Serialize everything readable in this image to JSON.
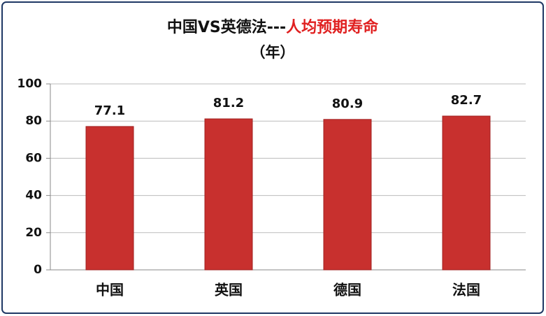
{
  "chart_data": {
    "type": "bar",
    "title": "中国VS英德法---",
    "title_highlight": "人均预期寿命",
    "subtitle": "（年）",
    "categories": [
      "中国",
      "英国",
      "德国",
      "法国"
    ],
    "values": [
      77.1,
      81.2,
      80.9,
      82.7
    ],
    "color": "#c8302e",
    "title_highlight_color": "#e02020",
    "ylim": [
      0,
      100
    ],
    "yticks": [
      0,
      20,
      40,
      60,
      80,
      100
    ],
    "grid": true
  }
}
